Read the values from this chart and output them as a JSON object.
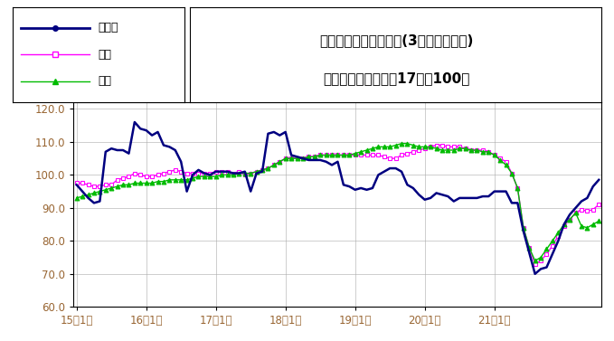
{
  "title_line1": "鉱工業生産指数の推移(3ヶ月移動平均)",
  "title_line2": "（季節調整済、平成17年＝100）",
  "xlabel_ticks": [
    "15年1月",
    "16年1月",
    "17年1月",
    "18年1月",
    "19年1月",
    "20年1月",
    "21年1月"
  ],
  "ylim": [
    60.0,
    122.0
  ],
  "yticks": [
    60.0,
    70.0,
    80.0,
    90.0,
    100.0,
    110.0,
    120.0
  ],
  "tick_label_color": "#996633",
  "legend_tottori": "鳥取県",
  "legend_chugoku": "中国",
  "legend_zenkoku": "全国",
  "colors": {
    "tottori": "#000080",
    "chugoku": "#ff00ff",
    "zenkoku": "#00bb00"
  },
  "tottori": [
    97.0,
    95.0,
    93.0,
    91.5,
    92.0,
    107.0,
    108.0,
    107.5,
    107.5,
    106.5,
    116.0,
    114.0,
    113.5,
    112.0,
    113.0,
    109.0,
    108.5,
    107.5,
    104.0,
    95.0,
    100.0,
    101.5,
    100.5,
    100.0,
    101.0,
    101.0,
    101.0,
    100.5,
    100.5,
    101.0,
    95.0,
    100.5,
    101.0,
    112.5,
    113.0,
    112.0,
    113.0,
    106.0,
    105.5,
    105.0,
    104.5,
    104.5,
    104.5,
    104.0,
    103.0,
    104.0,
    97.0,
    96.5,
    95.5,
    96.0,
    95.5,
    96.0,
    100.0,
    101.0,
    102.0,
    102.0,
    101.0,
    97.0,
    96.0,
    94.0,
    92.5,
    93.0,
    94.5,
    94.0,
    93.5,
    92.0,
    93.0,
    93.0,
    93.0,
    93.0,
    93.5,
    93.5,
    95.0,
    95.0,
    95.0,
    91.5,
    91.5,
    83.0,
    76.5,
    70.0,
    71.5,
    72.0,
    76.0,
    80.0,
    85.0,
    88.0,
    90.0,
    92.0,
    93.0,
    96.5,
    98.5
  ],
  "chugoku": [
    97.5,
    97.5,
    97.0,
    96.5,
    96.5,
    97.0,
    97.0,
    98.5,
    99.0,
    99.5,
    100.5,
    100.0,
    99.5,
    99.5,
    100.0,
    100.5,
    101.0,
    101.5,
    101.0,
    100.5,
    100.5,
    100.5,
    100.5,
    100.5,
    101.0,
    101.0,
    101.0,
    100.5,
    101.0,
    100.0,
    100.5,
    101.0,
    101.5,
    102.0,
    103.0,
    104.0,
    105.0,
    105.0,
    105.0,
    105.0,
    105.5,
    105.5,
    106.0,
    106.0,
    106.0,
    106.0,
    106.0,
    106.0,
    106.0,
    106.0,
    106.0,
    106.0,
    106.0,
    105.5,
    105.0,
    105.0,
    106.0,
    106.5,
    107.0,
    107.5,
    108.0,
    108.5,
    109.0,
    109.0,
    108.5,
    108.5,
    108.5,
    108.0,
    107.5,
    107.5,
    107.5,
    107.0,
    106.0,
    105.0,
    104.0,
    100.5,
    96.0,
    84.0,
    78.0,
    73.0,
    74.0,
    76.0,
    78.5,
    81.5,
    84.5,
    86.5,
    88.5,
    89.5,
    89.0,
    89.5,
    91.0
  ],
  "zenkoku": [
    93.0,
    93.5,
    94.0,
    94.5,
    95.0,
    95.5,
    96.0,
    96.5,
    97.0,
    97.0,
    97.5,
    97.5,
    97.5,
    97.5,
    98.0,
    98.0,
    98.5,
    98.5,
    98.5,
    98.5,
    99.0,
    99.5,
    99.5,
    99.5,
    99.5,
    100.0,
    100.0,
    100.0,
    100.5,
    100.5,
    100.5,
    101.0,
    101.5,
    102.0,
    103.0,
    104.0,
    105.0,
    105.0,
    105.0,
    105.0,
    105.5,
    105.5,
    106.0,
    106.0,
    106.0,
    106.0,
    106.0,
    106.0,
    106.5,
    107.0,
    107.5,
    108.0,
    108.5,
    108.5,
    108.5,
    109.0,
    109.5,
    109.5,
    109.0,
    108.5,
    108.5,
    108.5,
    108.0,
    107.5,
    107.5,
    107.5,
    108.0,
    108.0,
    107.5,
    107.5,
    107.0,
    107.0,
    106.0,
    104.5,
    103.0,
    100.5,
    96.0,
    84.0,
    78.0,
    74.0,
    75.0,
    77.5,
    80.0,
    82.5,
    85.0,
    86.5,
    88.5,
    84.5,
    84.0,
    85.0,
    86.0
  ],
  "tick_positions": [
    0,
    12,
    24,
    36,
    48,
    60,
    72
  ],
  "n_points": 91
}
